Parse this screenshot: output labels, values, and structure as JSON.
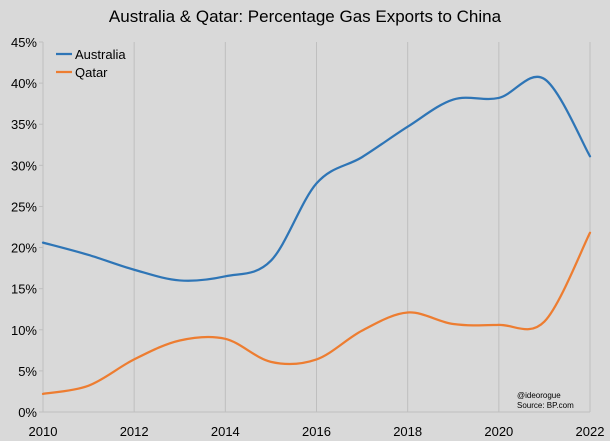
{
  "chart_data": {
    "type": "line",
    "title": "Australia & Qatar: Percentage Gas Exports to China",
    "xlabel": "",
    "ylabel": "",
    "x": [
      2010,
      2011,
      2012,
      2013,
      2014,
      2015,
      2016,
      2017,
      2018,
      2019,
      2020,
      2021,
      2022
    ],
    "xlim": [
      2010,
      2022
    ],
    "ylim": [
      0,
      45
    ],
    "x_ticks": [
      "2010",
      "2012",
      "2014",
      "2016",
      "2018",
      "2020",
      "2022"
    ],
    "y_ticks": [
      "0%",
      "5%",
      "10%",
      "15%",
      "20%",
      "25%",
      "30%",
      "35%",
      "40%",
      "45%"
    ],
    "grid": "vertical",
    "legend_position": "top-left",
    "series": [
      {
        "name": "Australia",
        "color": "#2e75b6",
        "values": [
          20.6,
          19.1,
          17.3,
          16.0,
          16.5,
          18.4,
          27.8,
          31.0,
          34.7,
          38.0,
          38.2,
          40.5,
          31.1
        ]
      },
      {
        "name": "Qatar",
        "color": "#ed7d31",
        "values": [
          2.2,
          3.2,
          6.4,
          8.7,
          8.9,
          6.1,
          6.4,
          9.9,
          12.1,
          10.7,
          10.6,
          11.0,
          21.8
        ]
      }
    ],
    "annotations": [
      "@ideorogue",
      "Source: BP.com"
    ]
  }
}
